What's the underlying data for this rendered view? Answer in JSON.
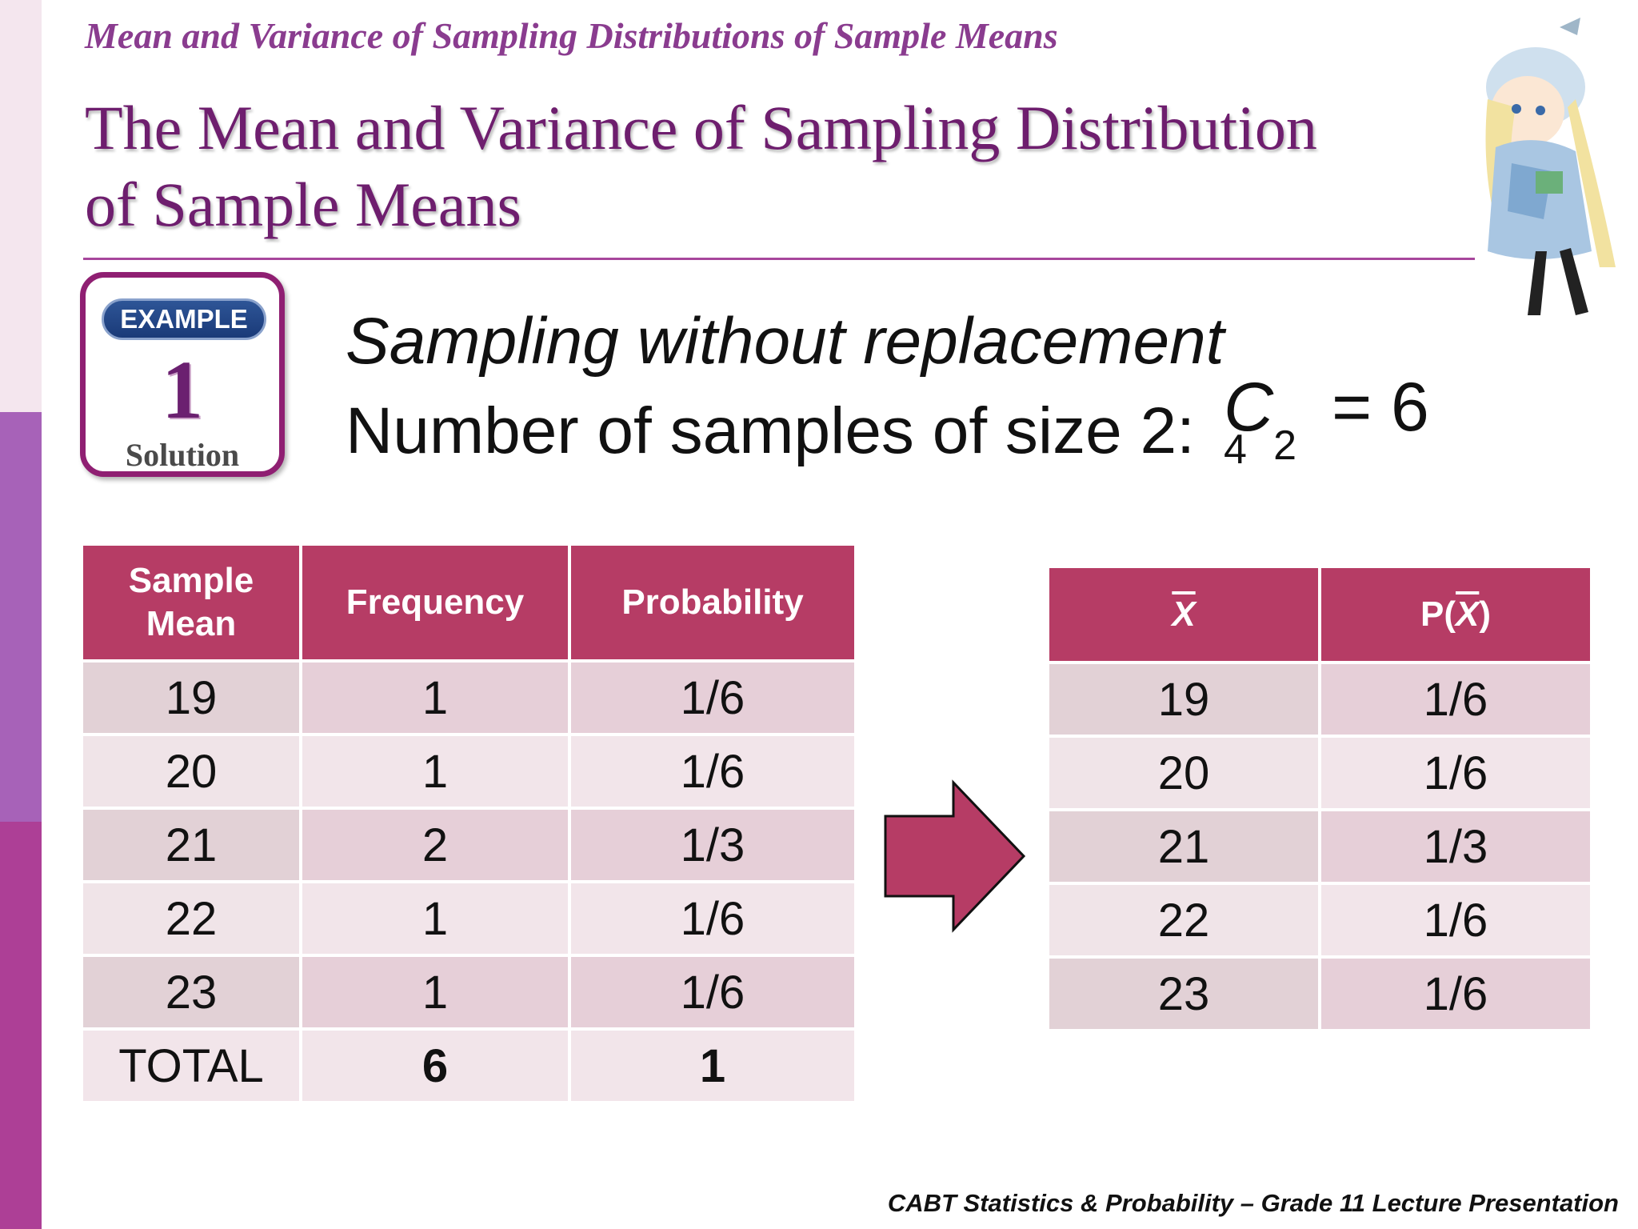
{
  "slide": {
    "header": "Mean and Variance of Sampling Distributions of Sample Means",
    "title_line1": "The Mean and Variance of Sampling Distribution",
    "title_line2": "of Sample Means",
    "footer": "CABT Statistics & Probability – Grade 11 Lecture Presentation"
  },
  "badge": {
    "label": "EXAMPLE",
    "number": "1",
    "sub": "Solution"
  },
  "text": {
    "line1": "Sampling without replacement",
    "line2": "Number of samples of size 2:"
  },
  "formula": {
    "n": "4",
    "c": "C",
    "r": "2",
    "eq": "= 6"
  },
  "table1": {
    "headers": [
      "Sample Mean",
      "Frequency",
      "Probability"
    ],
    "rows": [
      [
        "19",
        "1",
        "1/6"
      ],
      [
        "20",
        "1",
        "1/6"
      ],
      [
        "21",
        "2",
        "1/3"
      ],
      [
        "22",
        "1",
        "1/6"
      ],
      [
        "23",
        "1",
        "1/6"
      ]
    ],
    "total": [
      "TOTAL",
      "6",
      "1"
    ]
  },
  "table2": {
    "header_x": "X",
    "header_p_open": "P(",
    "header_p_x": "X",
    "header_p_close": ")",
    "rows": [
      [
        "19",
        "1/6"
      ],
      [
        "20",
        "1/6"
      ],
      [
        "21",
        "1/3"
      ],
      [
        "22",
        "1/6"
      ],
      [
        "23",
        "1/6"
      ]
    ]
  },
  "colors": {
    "header_fill": "#b63c65",
    "title": "#6e1e6e",
    "accent": "#a7469c"
  }
}
